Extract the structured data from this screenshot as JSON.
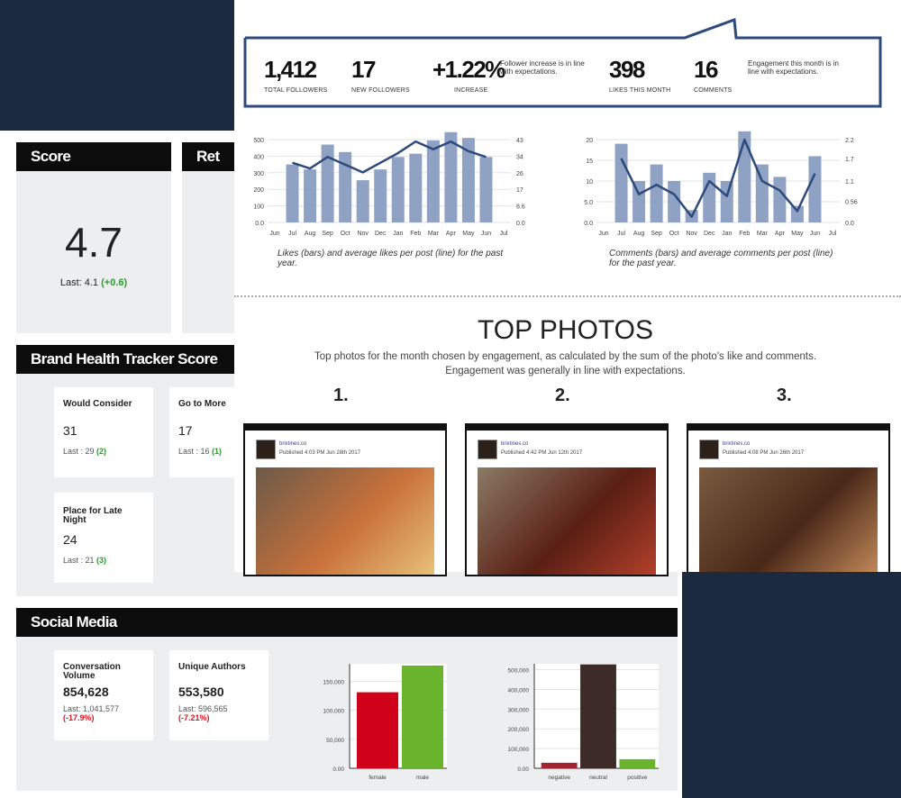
{
  "banner": {
    "total_followers": "1,412",
    "total_followers_label": "TOTAL FOLLOWERS",
    "new_followers": "17",
    "new_followers_label": "NEW FOLLOWERS",
    "increase": "+1.22%",
    "increase_label": "INCREASE",
    "follower_note": "Follower increase is in line with expectations.",
    "likes": "398",
    "likes_label": "LIKES THIS MONTH",
    "comments": "16",
    "comments_label": "COMMENTS",
    "engagement_note": "Engagement this month is in line with expectations."
  },
  "captions": [
    "Likes (bars) and average likes per post (line) for the past year.",
    "Comments (bars) and average comments per post (line) for the past year."
  ],
  "top_photos": {
    "title": "TOP PHOTOS",
    "subtitle": [
      "Top photos for the month chosen by engagement, as calculated by the sum of the photo's like and comments.",
      "Engagement was generally in line with expectations."
    ],
    "photos": [
      {
        "rank": "1.",
        "account": "brixtines.co",
        "published": "Published 4:03 PM Jun 28th 2017"
      },
      {
        "rank": "2.",
        "account": "brixtines.co",
        "published": "Published 4:42 PM Jun 12th 2017"
      },
      {
        "rank": "3.",
        "account": "brixtines.co",
        "published": "Published 4:08 PM Jun 26th 2017"
      }
    ]
  },
  "score": {
    "header": "Score",
    "value": "4.7",
    "last": "Last: 4.1",
    "change": "(+0.6)",
    "second_header": "Ret"
  },
  "brand_health": {
    "header": "Brand Health Tracker Score",
    "cards": [
      {
        "label": "Would Consider",
        "value": "31",
        "last": "Last : 29",
        "change": "(2)"
      },
      {
        "label": "Go to More",
        "value": "17",
        "last": "Last : 16",
        "change": "(1)"
      },
      {
        "label": "Place for Late Night",
        "value": "24",
        "last": "Last : 21",
        "change": "(3)"
      }
    ]
  },
  "social_media": {
    "header": "Social Media",
    "cards": [
      {
        "label": "Conversation Volume",
        "value": "854,628",
        "last": "Last: 1,041,577",
        "change": "(-17.9%)"
      },
      {
        "label": "Unique Authors",
        "value": "553,580",
        "last": "Last: 596,565",
        "change": "(-7.21%)"
      }
    ]
  },
  "chart_data": [
    {
      "type": "combo",
      "categories": [
        "Jun",
        "Jul",
        "Aug",
        "Sep",
        "Oct",
        "Nov",
        "Dec",
        "Jan",
        "Feb",
        "Mar",
        "Apr",
        "May",
        "Jun",
        "Jul"
      ],
      "series": [
        {
          "color": "#8fa2c4",
          "values": [
            null,
            350,
            320,
            470,
            425,
            255,
            320,
            395,
            415,
            495,
            545,
            510,
            395,
            null
          ]
        },
        {
          "color": "#2d4a7c",
          "axis": "y2",
          "values": [
            null,
            31,
            28,
            34,
            30,
            26,
            31,
            36,
            42,
            38,
            42,
            37,
            34,
            null
          ]
        }
      ],
      "ylim": [
        0,
        500
      ],
      "yticks": [
        {
          "value": 0,
          "label": "0.0"
        },
        100,
        200,
        300,
        400,
        500
      ],
      "y2lim": [
        0,
        43
      ],
      "y2ticks": [
        {
          "value": 0,
          "label": "0.0"
        },
        8.6,
        {
          "value": 17.2,
          "label": "17"
        },
        {
          "value": 25.8,
          "label": "26"
        },
        {
          "value": 34.4,
          "label": "34"
        },
        43
      ],
      "grid": true
    },
    {
      "type": "combo",
      "categories": [
        "Jun",
        "Jul",
        "Aug",
        "Sep",
        "Oct",
        "Nov",
        "Dec",
        "Jan",
        "Feb",
        "Mar",
        "Apr",
        "May",
        "Jun",
        "Jul"
      ],
      "series": [
        {
          "color": "#8fa2c4",
          "values": [
            null,
            19,
            10,
            14,
            10,
            3,
            12,
            10,
            22,
            14,
            11,
            4,
            16,
            null
          ]
        },
        {
          "color": "#2d4a7c",
          "axis": "y2",
          "values": [
            null,
            1.7,
            0.75,
            1.0,
            0.75,
            0.15,
            1.1,
            0.7,
            2.2,
            1.1,
            0.85,
            0.3,
            1.3,
            null
          ]
        }
      ],
      "ylim": [
        0,
        20
      ],
      "yticks": [
        {
          "value": 0,
          "label": "0.0"
        },
        {
          "value": 5,
          "label": "5.0"
        },
        10,
        15,
        20
      ],
      "y2lim": [
        0,
        2.2
      ],
      "y2ticks": [
        {
          "value": 0,
          "label": "0.0"
        },
        0.56,
        1.1,
        1.7,
        2.2
      ],
      "grid": true
    },
    {
      "type": "bar",
      "categories": [
        "female",
        "male"
      ],
      "values": [
        131000,
        177000
      ],
      "colors": [
        "#d0021b",
        "#6ab42d"
      ],
      "ylim": [
        0,
        180000
      ],
      "yticks": [
        {
          "value": 0,
          "label": "0.00"
        },
        {
          "value": 50000,
          "label": "50,000"
        },
        {
          "value": 100000,
          "label": "100,000"
        },
        {
          "value": 150000,
          "label": "150,000"
        }
      ],
      "grid": true
    },
    {
      "type": "bar",
      "categories": [
        "negative",
        "neutral",
        "positive"
      ],
      "values": [
        28000,
        527000,
        46000
      ],
      "colors": [
        "#a3232f",
        "#3d2b27",
        "#6ab42d"
      ],
      "ylim": [
        0,
        530000
      ],
      "yticks": [
        {
          "value": 0,
          "label": "0.00"
        },
        {
          "value": 100000,
          "label": "100,000"
        },
        {
          "value": 200000,
          "label": "200,000"
        },
        {
          "value": 300000,
          "label": "300,000"
        },
        {
          "value": 400000,
          "label": "400,000"
        },
        {
          "value": 500000,
          "label": "500,000"
        }
      ],
      "grid": true
    }
  ]
}
